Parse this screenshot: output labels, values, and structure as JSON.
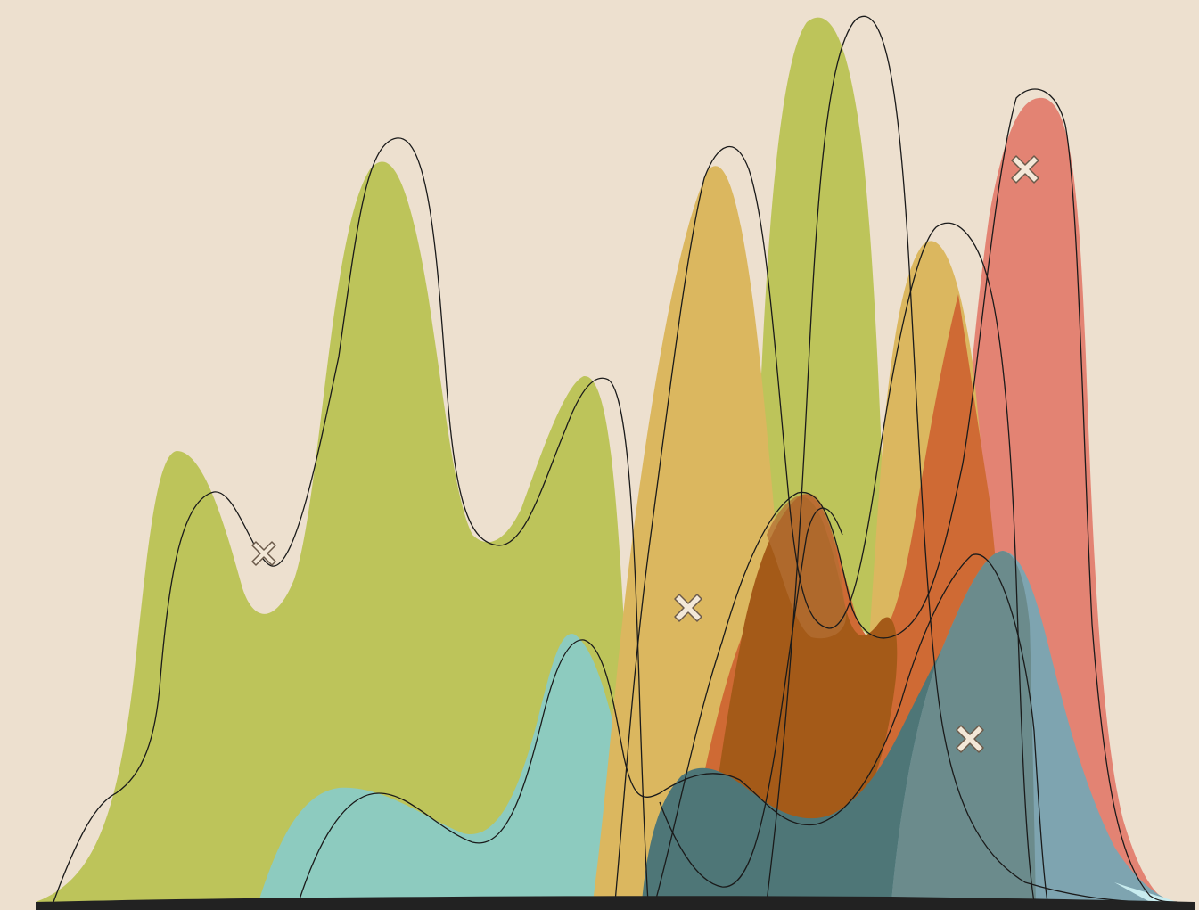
{
  "artwork": {
    "background_color": "#ede0cf",
    "baseline_color": "#222222",
    "line_color": "#1a1a1a",
    "marker_fill": "#f3e8d8",
    "marker_stroke": "#6b5a4a",
    "marker_icon": "x-mark-icon",
    "shape_colors": {
      "olive": "#b7c04e",
      "teal": "#7fc8bd",
      "mustard": "#dab152",
      "coral": "#e0786a",
      "burnt-orange": "#cc5a22",
      "rust": "#8f4a10",
      "slate-teal": "#3d6870",
      "steel-blue": "#6a9aad",
      "pale-cyan": "#c8ecef"
    },
    "marker_count": 5
  }
}
